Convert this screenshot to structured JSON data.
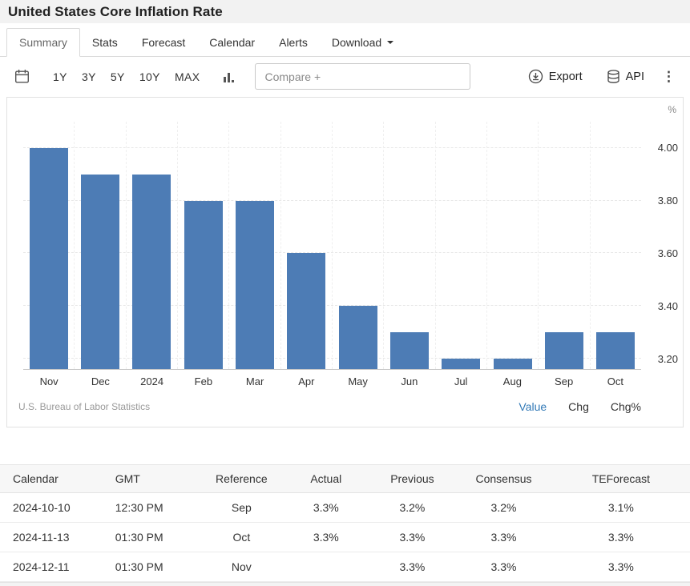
{
  "page": {
    "title": "United States Core Inflation Rate"
  },
  "tabs": [
    {
      "label": "Summary",
      "active": true
    },
    {
      "label": "Stats"
    },
    {
      "label": "Forecast"
    },
    {
      "label": "Calendar"
    },
    {
      "label": "Alerts"
    },
    {
      "label": "Download",
      "dropdown": true
    }
  ],
  "toolbar": {
    "ranges": [
      "1Y",
      "3Y",
      "5Y",
      "10Y",
      "MAX"
    ],
    "compare_placeholder": "Compare +",
    "export_label": "Export",
    "api_label": "API",
    "menu_glyph": "⋮",
    "icons": {
      "calendar-icon": "calendar",
      "chart-type-icon": "column-chart",
      "export-icon": "circle-down-arrow",
      "api-icon": "database"
    }
  },
  "chart_data": {
    "type": "bar",
    "title": "United States Core Inflation Rate",
    "categories": [
      "Nov",
      "Dec",
      "2024",
      "Feb",
      "Mar",
      "Apr",
      "May",
      "Jun",
      "Jul",
      "Aug",
      "Sep",
      "Oct"
    ],
    "values": [
      4.0,
      3.9,
      3.9,
      3.8,
      3.8,
      3.6,
      3.4,
      3.3,
      3.2,
      3.2,
      3.3,
      3.3
    ],
    "unit": "%",
    "ylim": [
      3.16,
      4.1
    ],
    "yticks": [
      {
        "value": 3.2,
        "label": "3.20"
      },
      {
        "value": 3.4,
        "label": "3.40"
      },
      {
        "value": 3.6,
        "label": "3.60"
      },
      {
        "value": 3.8,
        "label": "3.80"
      },
      {
        "value": 4.0,
        "label": "4.00"
      }
    ],
    "grid": true,
    "legend_position": "none",
    "bar_color": "#4d7cb5",
    "accent_color": "#337ab7",
    "attribution": "U.S. Bureau of Labor Statistics",
    "modes": [
      "Value",
      "Chg",
      "Chg%"
    ],
    "active_mode": "Value"
  },
  "table": {
    "headers": [
      "Calendar",
      "GMT",
      "Reference",
      "Actual",
      "Previous",
      "Consensus",
      "TEForecast"
    ],
    "rows": [
      [
        "2024-10-10",
        "12:30 PM",
        "Sep",
        "3.3%",
        "3.2%",
        "3.2%",
        "3.1%"
      ],
      [
        "2024-11-13",
        "01:30 PM",
        "Oct",
        "3.3%",
        "3.3%",
        "3.3%",
        "3.3%"
      ],
      [
        "2024-12-11",
        "01:30 PM",
        "Nov",
        "",
        "3.3%",
        "3.3%",
        "3.3%"
      ]
    ]
  }
}
